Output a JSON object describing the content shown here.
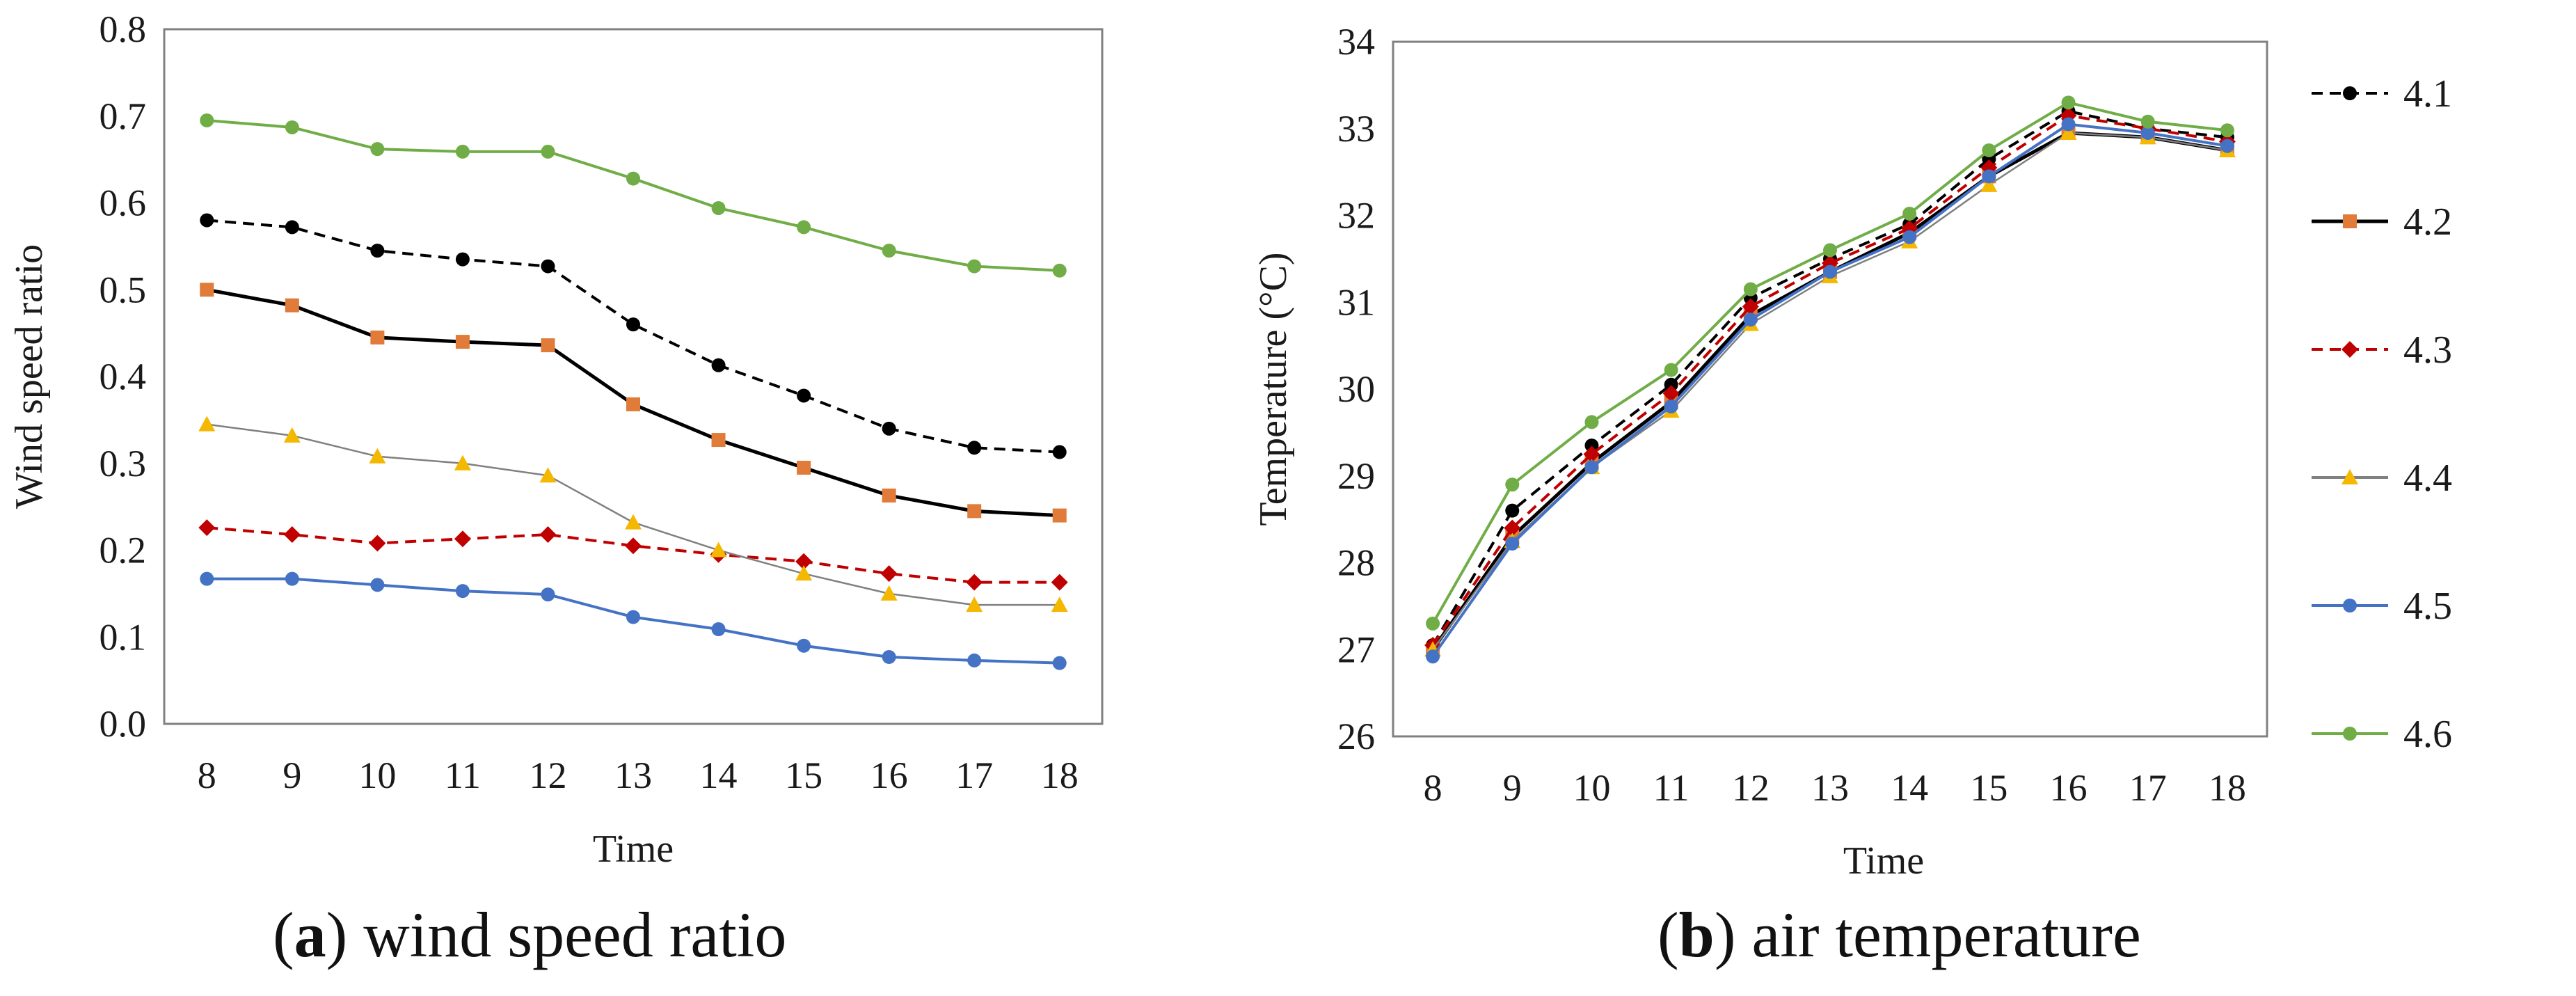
{
  "chart_data": [
    {
      "type": "line",
      "id": "a",
      "caption": {
        "letter": "a",
        "text": "wind speed ratio"
      },
      "xlabel": "Time",
      "ylabel": "Wind speed ratio",
      "x": [
        8,
        9,
        10,
        11,
        12,
        13,
        14,
        15,
        16,
        17,
        18
      ],
      "ylim": [
        0.0,
        0.8
      ],
      "yticks": [
        "0.0",
        "0.1",
        "0.2",
        "0.3",
        "0.4",
        "0.5",
        "0.6",
        "0.7",
        "0.8"
      ],
      "series": [
        {
          "name": "4.1",
          "color": "#000000",
          "marker": "circle",
          "dash": true,
          "values": [
            0.58,
            0.572,
            0.545,
            0.535,
            0.527,
            0.46,
            0.413,
            0.378,
            0.34,
            0.318,
            0.313
          ]
        },
        {
          "name": "4.2",
          "color": "#e07b39",
          "marker": "square",
          "dash": false,
          "values": [
            0.5,
            0.482,
            0.445,
            0.44,
            0.436,
            0.368,
            0.327,
            0.295,
            0.263,
            0.245,
            0.24
          ]
        },
        {
          "name": "4.3",
          "color": "#c00000",
          "marker": "diamond",
          "dash": true,
          "values": [
            0.226,
            0.218,
            0.208,
            0.213,
            0.218,
            0.205,
            0.195,
            0.187,
            0.173,
            0.163,
            0.163
          ]
        },
        {
          "name": "4.4",
          "color": "#f5b800",
          "marker": "triangle",
          "dash": false,
          "values": [
            0.345,
            0.332,
            0.308,
            0.3,
            0.286,
            0.232,
            0.2,
            0.173,
            0.15,
            0.137,
            0.137
          ]
        },
        {
          "name": "4.5",
          "color": "#4472c4",
          "marker": "circle",
          "dash": false,
          "values": [
            0.167,
            0.167,
            0.16,
            0.153,
            0.149,
            0.123,
            0.109,
            0.09,
            0.077,
            0.073,
            0.07
          ]
        },
        {
          "name": "4.6",
          "color": "#70ad47",
          "marker": "circle",
          "dash": false,
          "values": [
            0.695,
            0.687,
            0.662,
            0.659,
            0.659,
            0.628,
            0.594,
            0.572,
            0.545,
            0.527,
            0.522
          ]
        }
      ]
    },
    {
      "type": "line",
      "id": "b",
      "caption": {
        "letter": "b",
        "text": "air temperature"
      },
      "xlabel": "Time",
      "ylabel": "Temperature (°C)",
      "x": [
        8,
        9,
        10,
        11,
        12,
        13,
        14,
        15,
        16,
        17,
        18
      ],
      "ylim": [
        26,
        34
      ],
      "yticks": [
        "26",
        "27",
        "28",
        "29",
        "30",
        "31",
        "32",
        "33",
        "34"
      ],
      "legend": "right",
      "series": [
        {
          "name": "4.1",
          "color": "#000000",
          "marker": "circle",
          "dash": true,
          "values": [
            27.05,
            28.6,
            29.35,
            30.05,
            31.05,
            31.5,
            31.9,
            32.65,
            33.2,
            33.0,
            32.9
          ]
        },
        {
          "name": "4.2",
          "color": "#e07b39",
          "marker": "square",
          "dash": false,
          "values": [
            27.0,
            28.3,
            29.15,
            29.85,
            30.85,
            31.35,
            31.8,
            32.45,
            32.95,
            32.9,
            32.75
          ]
        },
        {
          "name": "4.3",
          "color": "#c00000",
          "marker": "diamond",
          "dash": true,
          "values": [
            27.05,
            28.4,
            29.25,
            29.95,
            30.95,
            31.45,
            31.85,
            32.55,
            33.15,
            33.0,
            32.85
          ]
        },
        {
          "name": "4.4",
          "color": "#f5b800",
          "marker": "triangle",
          "dash": false,
          "values": [
            27.0,
            28.25,
            29.1,
            29.75,
            30.75,
            31.3,
            31.7,
            32.35,
            32.95,
            32.9,
            32.75
          ]
        },
        {
          "name": "4.5",
          "color": "#4472c4",
          "marker": "circle",
          "dash": false,
          "values": [
            26.92,
            28.22,
            29.1,
            29.8,
            30.8,
            31.35,
            31.75,
            32.45,
            33.05,
            32.95,
            32.8
          ]
        },
        {
          "name": "4.6",
          "color": "#70ad47",
          "marker": "circle",
          "dash": false,
          "values": [
            27.3,
            28.9,
            29.62,
            30.22,
            31.15,
            31.6,
            32.02,
            32.75,
            33.3,
            33.08,
            32.98
          ]
        }
      ]
    }
  ]
}
